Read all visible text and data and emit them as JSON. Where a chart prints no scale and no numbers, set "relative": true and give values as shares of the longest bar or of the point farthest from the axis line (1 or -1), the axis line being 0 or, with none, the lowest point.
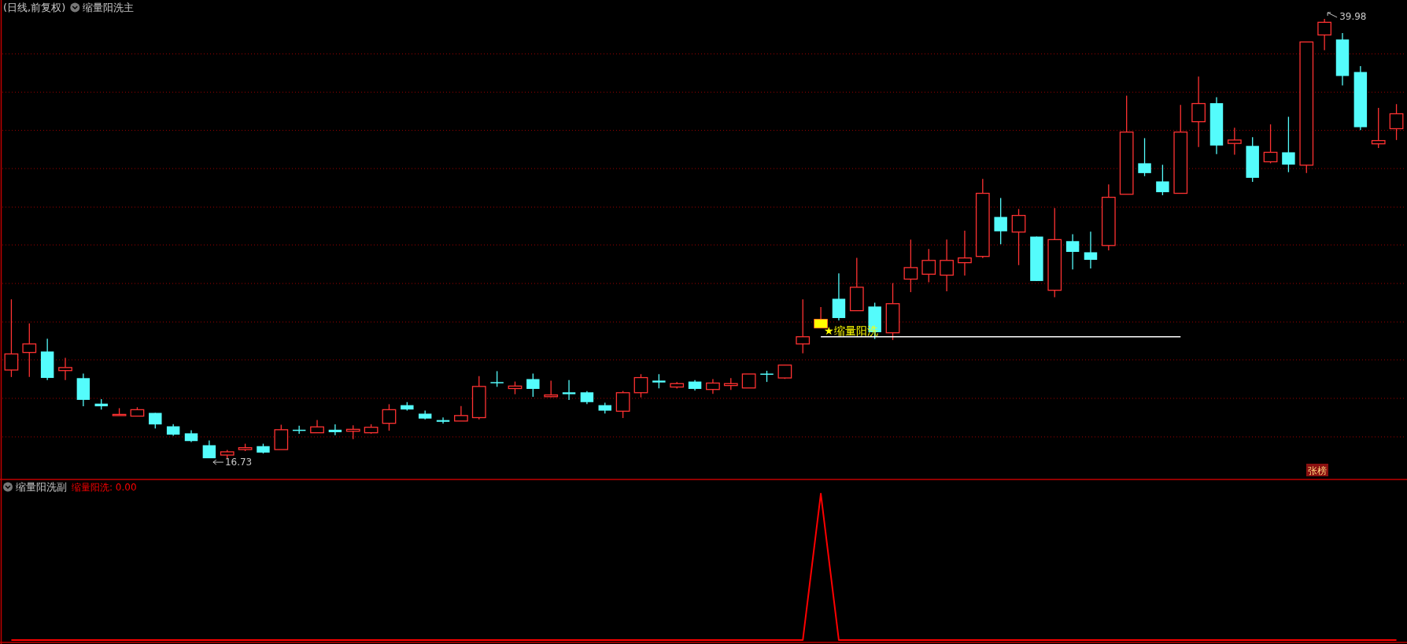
{
  "chart_data": [
    {
      "type": "candlestick",
      "title": "(日线,前复权)",
      "subtitle": "缩量阳洗主",
      "categories": [
        null,
        null,
        null,
        null,
        null,
        null,
        null,
        null,
        null,
        null,
        null,
        null,
        null,
        null,
        null,
        null,
        null,
        null,
        null,
        null,
        null,
        null,
        null,
        null,
        null,
        null,
        null,
        null,
        null,
        null,
        null,
        null,
        null,
        null,
        null,
        null,
        null,
        null,
        null,
        null,
        null,
        null,
        null,
        null,
        null,
        null,
        null,
        null,
        null,
        null,
        null,
        null,
        null,
        null,
        null,
        null,
        null,
        null,
        null,
        null,
        null,
        null,
        null,
        null,
        null,
        null,
        null,
        null,
        null,
        null,
        null,
        null,
        null,
        null,
        null,
        null,
        null,
        null
      ],
      "ohlc": [
        [
          21.4,
          25.14,
          21.03,
          22.25
        ],
        [
          22.33,
          23.87,
          21.03,
          22.78
        ],
        [
          22.38,
          23.06,
          20.87,
          20.98
        ],
        [
          21.37,
          22.04,
          20.87,
          21.53
        ],
        [
          20.97,
          21.21,
          19.48,
          19.82
        ],
        [
          19.62,
          19.86,
          19.31,
          19.48
        ],
        [
          19.02,
          19.38,
          19.02,
          19.05
        ],
        [
          18.96,
          19.43,
          18.96,
          19.3
        ],
        [
          19.13,
          19.13,
          18.31,
          18.52
        ],
        [
          18.42,
          18.53,
          17.92,
          17.98
        ],
        [
          18.05,
          18.21,
          17.59,
          17.64
        ],
        [
          17.42,
          17.67,
          16.73,
          16.73
        ],
        [
          16.9,
          17.17,
          16.73,
          17.07
        ],
        [
          17.19,
          17.5,
          17.11,
          17.29
        ],
        [
          17.37,
          17.5,
          16.98,
          17.03
        ],
        [
          17.19,
          18.5,
          17.19,
          18.24
        ],
        [
          18.24,
          18.45,
          18.02,
          18.18
        ],
        [
          18.08,
          18.75,
          18.08,
          18.39
        ],
        [
          18.24,
          18.52,
          17.95,
          18.11
        ],
        [
          18.16,
          18.47,
          17.74,
          18.26
        ],
        [
          18.08,
          18.53,
          18.03,
          18.37
        ],
        [
          18.58,
          19.59,
          18.19,
          19.3
        ],
        [
          19.54,
          19.7,
          19.25,
          19.31
        ],
        [
          19.09,
          19.25,
          18.78,
          18.83
        ],
        [
          18.75,
          18.89,
          18.57,
          18.66
        ],
        [
          18.7,
          19.49,
          18.7,
          18.99
        ],
        [
          18.88,
          21.08,
          18.78,
          20.53
        ],
        [
          20.76,
          21.34,
          20.51,
          20.71
        ],
        [
          20.42,
          20.79,
          20.12,
          20.55
        ],
        [
          20.92,
          21.21,
          19.98,
          20.4
        ],
        [
          19.99,
          20.84,
          19.96,
          20.08
        ],
        [
          20.22,
          20.87,
          19.82,
          20.12
        ],
        [
          20.22,
          20.29,
          19.6,
          19.7
        ],
        [
          19.54,
          19.67,
          19.1,
          19.25
        ],
        [
          19.22,
          20.29,
          18.86,
          20.2
        ],
        [
          20.2,
          21.18,
          19.95,
          21.0
        ],
        [
          20.84,
          21.18,
          20.43,
          20.74
        ],
        [
          20.5,
          20.76,
          20.42,
          20.68
        ],
        [
          20.79,
          20.87,
          20.32,
          20.4
        ],
        [
          20.37,
          20.92,
          20.14,
          20.71
        ],
        [
          20.58,
          20.97,
          20.35,
          20.68
        ],
        [
          20.45,
          21.19,
          20.45,
          21.19
        ],
        [
          21.21,
          21.36,
          20.77,
          21.16
        ],
        [
          20.98,
          21.66,
          20.93,
          21.66
        ],
        [
          22.78,
          25.14,
          22.28,
          23.16
        ],
        [
          23.63,
          24.73,
          23.63,
          24.08
        ],
        [
          25.17,
          26.51,
          24.02,
          24.15
        ],
        [
          24.54,
          27.34,
          24.54,
          25.78
        ],
        [
          24.76,
          24.96,
          23.04,
          23.4
        ],
        [
          23.37,
          26.0,
          22.99,
          24.91
        ],
        [
          26.21,
          28.3,
          25.52,
          26.82
        ],
        [
          26.47,
          27.8,
          26.04,
          27.2
        ],
        [
          26.42,
          28.3,
          25.57,
          27.2
        ],
        [
          27.08,
          28.77,
          26.4,
          27.33
        ],
        [
          27.41,
          31.51,
          27.33,
          30.75
        ],
        [
          29.5,
          30.5,
          28.05,
          28.74
        ],
        [
          28.7,
          29.92,
          26.95,
          29.58
        ],
        [
          28.46,
          28.46,
          26.11,
          26.11
        ],
        [
          25.62,
          29.97,
          25.25,
          28.3
        ],
        [
          28.22,
          28.59,
          26.72,
          27.65
        ],
        [
          27.63,
          28.72,
          26.77,
          27.23
        ],
        [
          27.99,
          31.22,
          27.73,
          30.54
        ],
        [
          30.7,
          35.92,
          30.7,
          33.99
        ],
        [
          32.34,
          33.67,
          31.66,
          31.82
        ],
        [
          31.38,
          32.26,
          30.65,
          30.81
        ],
        [
          30.75,
          35.43,
          30.75,
          33.99
        ],
        [
          34.54,
          36.93,
          33.2,
          35.5
        ],
        [
          35.52,
          35.84,
          32.82,
          33.28
        ],
        [
          33.39,
          34.22,
          32.79,
          33.57
        ],
        [
          33.26,
          33.72,
          31.36,
          31.57
        ],
        [
          32.42,
          34.4,
          32.34,
          32.92
        ],
        [
          32.92,
          34.8,
          31.87,
          32.27
        ],
        [
          32.24,
          38.76,
          31.82,
          38.76
        ],
        [
          39.13,
          39.98,
          38.32,
          39.8
        ],
        [
          38.89,
          39.23,
          36.46,
          36.96
        ],
        [
          37.17,
          37.48,
          34.1,
          34.25
        ],
        [
          33.37,
          35.27,
          33.15,
          33.54
        ],
        [
          34.17,
          35.47,
          33.57,
          34.96
        ]
      ],
      "series": [
        {
          "type": "line",
          "color": "#ffffff",
          "values": [
            null,
            null,
            null,
            null,
            null,
            null,
            null,
            null,
            null,
            null,
            null,
            null,
            null,
            null,
            null,
            null,
            null,
            null,
            null,
            null,
            null,
            null,
            null,
            null,
            null,
            null,
            null,
            null,
            null,
            null,
            null,
            null,
            null,
            null,
            null,
            null,
            null,
            null,
            null,
            null,
            null,
            null,
            null,
            null,
            null,
            23.16,
            23.16,
            23.16,
            23.16,
            23.16,
            23.16,
            23.16,
            23.16,
            23.16,
            23.16,
            23.16,
            23.16,
            23.16,
            23.16,
            23.16,
            23.16,
            23.16,
            23.16,
            23.16,
            23.16,
            23.16,
            null,
            null,
            null,
            null,
            null,
            null,
            null,
            null,
            null,
            null,
            null,
            null
          ]
        }
      ],
      "ylim": [
        15.65,
        40.98
      ],
      "yticks": [
        {
          "value": 17.86,
          "label": null
        },
        {
          "value": 19.9,
          "label": null
        },
        {
          "value": 21.94,
          "label": null
        },
        {
          "value": 23.94,
          "label": null
        },
        {
          "value": 25.98,
          "label": null
        },
        {
          "value": 28.02,
          "label": null
        },
        {
          "value": 30.02,
          "label": null
        },
        {
          "value": 32.06,
          "label": null
        },
        {
          "value": 34.08,
          "label": null
        },
        {
          "value": 36.1,
          "label": null
        },
        {
          "value": 38.13,
          "label": null
        }
      ],
      "grid": "y",
      "annotations": [
        "16.73",
        "39.98",
        "★缩量阳洗",
        "张榜"
      ]
    },
    {
      "type": "line",
      "title": "缩量阳洗副",
      "relative": true,
      "categories": [
        null,
        null,
        null,
        null,
        null,
        null,
        null,
        null,
        null,
        null,
        null,
        null,
        null,
        null,
        null,
        null,
        null,
        null,
        null,
        null,
        null,
        null,
        null,
        null,
        null,
        null,
        null,
        null,
        null,
        null,
        null,
        null,
        null,
        null,
        null,
        null,
        null,
        null,
        null,
        null,
        null,
        null,
        null,
        null,
        null,
        null,
        null,
        null,
        null,
        null,
        null,
        null,
        null,
        null,
        null,
        null,
        null,
        null,
        null,
        null,
        null,
        null,
        null,
        null,
        null,
        null,
        null,
        null,
        null,
        null,
        null,
        null,
        null,
        null,
        null,
        null,
        null,
        null
      ],
      "series": [
        {
          "color": "#ff0000",
          "values": [
            0,
            0,
            0,
            0,
            0,
            0,
            0,
            0,
            0,
            0,
            0,
            0,
            0,
            0,
            0,
            0,
            0,
            0,
            0,
            0,
            0,
            0,
            0,
            0,
            0,
            0,
            0,
            0,
            0,
            0,
            0,
            0,
            0,
            0,
            0,
            0,
            0,
            0,
            0,
            0,
            0,
            0,
            0,
            0,
            0,
            1,
            0,
            0,
            0,
            0,
            0,
            0,
            0,
            0,
            0,
            0,
            0,
            0,
            0,
            0,
            0,
            0,
            0,
            0,
            0,
            0,
            0,
            0,
            0,
            0,
            0,
            0,
            0,
            0,
            0,
            0,
            0,
            0
          ]
        }
      ],
      "annotations": [
        "缩量阳洗: 0.00"
      ]
    }
  ]
}
